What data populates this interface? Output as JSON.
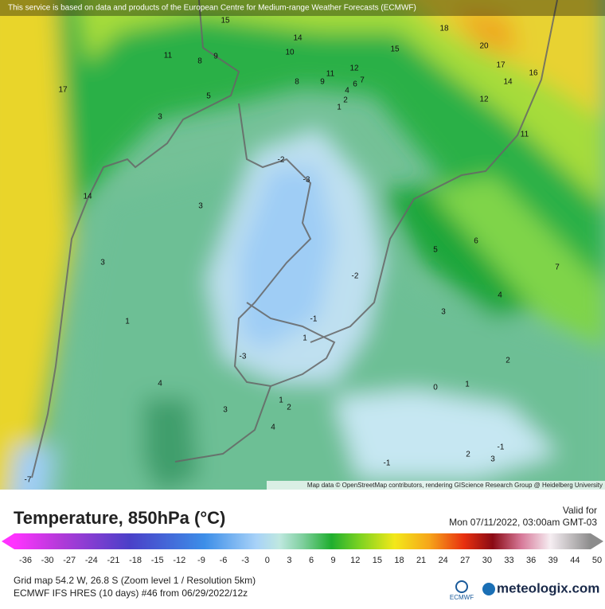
{
  "header": {
    "notice": "This service is based on data and products of the European Centre for Medium-range Weather Forecasts (ECMWF)"
  },
  "map": {
    "contour_labels": [
      "15",
      "14",
      "18",
      "20",
      "11",
      "8",
      "9",
      "10",
      "15",
      "17",
      "12",
      "11",
      "14",
      "16",
      "17",
      "8",
      "9",
      "6",
      "7",
      "4",
      "5",
      "2",
      "12",
      "1",
      "3",
      "11",
      "-2",
      "-3",
      "14",
      "3",
      "6",
      "5",
      "7",
      "3",
      "-2",
      "4",
      "3",
      "-1",
      "1",
      "1",
      "-3",
      "2",
      "4",
      "0",
      "1",
      "1",
      "2",
      "3",
      "4",
      "-1",
      "2",
      "3",
      "-1",
      "-7"
    ],
    "attribution": "Map data © OpenStreetMap contributors, rendering GIScience Research Group @ Heidelberg University"
  },
  "legend": {
    "title": "Temperature, 850hPa (°C)",
    "valid_label": "Valid for",
    "valid_time": "Mon 07/11/2022, 03:00am GMT-03",
    "ticks": [
      -36,
      -30,
      -27,
      -24,
      -21,
      -18,
      -15,
      -12,
      -9,
      -6,
      -3,
      0,
      3,
      6,
      9,
      12,
      15,
      18,
      21,
      24,
      27,
      30,
      33,
      36,
      39,
      44,
      50
    ]
  },
  "footer": {
    "grid_info": "Grid map 54.2 W, 26.8 S (Zoom level 1 / Resolution 5km)",
    "model_info": "ECMWF IFS HRES (10 days) #46 from 06/29/2022/12z",
    "ecmwf": "ECMWF",
    "brand": "meteologix.com"
  }
}
